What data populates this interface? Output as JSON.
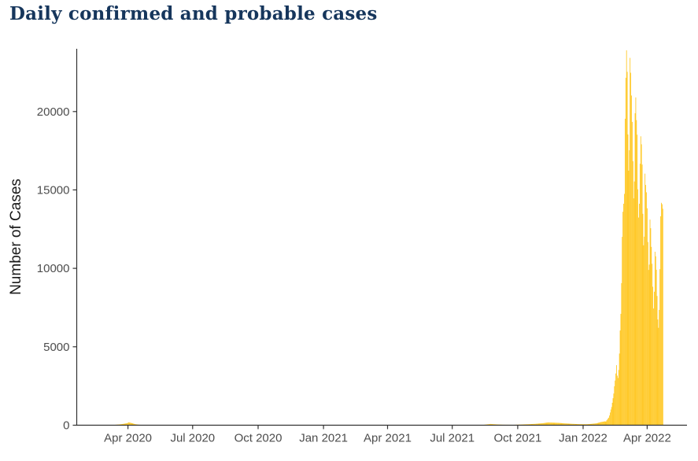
{
  "page": {
    "title": "Daily confirmed and probable cases",
    "title_color": "#16365c",
    "background_color": "#ffffff"
  },
  "chart_data": {
    "type": "bar",
    "title": "Daily confirmed and probable cases",
    "xlabel": "",
    "ylabel": "Number of Cases",
    "legend": "none",
    "grid": "off",
    "panel_background": "#ffffff",
    "bar_color": "#FFC20E",
    "axis_line_color": "#333333",
    "tick_label_color": "#4d4d4d",
    "axis_title_color": "#1a1a1a",
    "xlim": [
      "2020-01-20",
      "2022-05-27"
    ],
    "ylim": [
      0,
      24000
    ],
    "x_ticks": [
      {
        "date": "2020-04-01",
        "label": "Apr 2020"
      },
      {
        "date": "2020-07-01",
        "label": "Jul 2020"
      },
      {
        "date": "2020-10-01",
        "label": "Oct 2020"
      },
      {
        "date": "2021-01-01",
        "label": "Jan 2021"
      },
      {
        "date": "2021-04-01",
        "label": "Apr 2021"
      },
      {
        "date": "2021-07-01",
        "label": "Jul 2021"
      },
      {
        "date": "2021-10-01",
        "label": "Oct 2021"
      },
      {
        "date": "2022-01-01",
        "label": "Jan 2022"
      },
      {
        "date": "2022-04-01",
        "label": "Apr 2022"
      }
    ],
    "y_ticks": [
      {
        "value": 0,
        "label": "0"
      },
      {
        "value": 5000,
        "label": "5000"
      },
      {
        "value": 10000,
        "label": "10000"
      },
      {
        "value": 15000,
        "label": "15000"
      },
      {
        "value": 20000,
        "label": "20000"
      }
    ],
    "series_name": "Daily confirmed and probable cases",
    "keyframes": [
      [
        "2020-02-26",
        0
      ],
      [
        "2020-02-28",
        5
      ],
      [
        "2020-03-05",
        12
      ],
      [
        "2020-03-10",
        18
      ],
      [
        "2020-03-15",
        30
      ],
      [
        "2020-03-20",
        50
      ],
      [
        "2020-03-24",
        75
      ],
      [
        "2020-03-27",
        95
      ],
      [
        "2020-03-31",
        130
      ],
      [
        "2020-04-02",
        180
      ],
      [
        "2020-04-05",
        150
      ],
      [
        "2020-04-08",
        110
      ],
      [
        "2020-04-11",
        70
      ],
      [
        "2020-04-15",
        40
      ],
      [
        "2020-04-20",
        20
      ],
      [
        "2020-04-26",
        10
      ],
      [
        "2020-05-05",
        5
      ],
      [
        "2020-06-01",
        2
      ],
      [
        "2020-08-01",
        3
      ],
      [
        "2020-08-12",
        15
      ],
      [
        "2020-08-20",
        10
      ],
      [
        "2020-09-01",
        8
      ],
      [
        "2020-10-01",
        5
      ],
      [
        "2020-11-15",
        5
      ],
      [
        "2021-01-01",
        8
      ],
      [
        "2021-02-15",
        10
      ],
      [
        "2021-04-01",
        6
      ],
      [
        "2021-06-01",
        5
      ],
      [
        "2021-08-10",
        5
      ],
      [
        "2021-08-18",
        45
      ],
      [
        "2021-08-24",
        80
      ],
      [
        "2021-08-29",
        60
      ],
      [
        "2021-09-10",
        32
      ],
      [
        "2021-09-25",
        25
      ],
      [
        "2021-10-05",
        42
      ],
      [
        "2021-10-15",
        62
      ],
      [
        "2021-10-25",
        85
      ],
      [
        "2021-11-05",
        125
      ],
      [
        "2021-11-13",
        175
      ],
      [
        "2021-11-20",
        160
      ],
      [
        "2021-11-27",
        150
      ],
      [
        "2021-12-05",
        120
      ],
      [
        "2021-12-15",
        92
      ],
      [
        "2021-12-25",
        70
      ],
      [
        "2022-01-05",
        62
      ],
      [
        "2022-01-12",
        82
      ],
      [
        "2022-01-20",
        122
      ],
      [
        "2022-01-26",
        200
      ],
      [
        "2022-02-01",
        250
      ],
      [
        "2022-02-02",
        222
      ],
      [
        "2022-02-03",
        306
      ],
      [
        "2022-02-04",
        352
      ],
      [
        "2022-02-05",
        420
      ],
      [
        "2022-02-06",
        480
      ],
      [
        "2022-02-07",
        620
      ],
      [
        "2022-02-08",
        810
      ],
      [
        "2022-02-09",
        1000
      ],
      [
        "2022-02-10",
        1160
      ],
      [
        "2022-02-11",
        1430
      ],
      [
        "2022-02-12",
        1720
      ],
      [
        "2022-02-13",
        2020
      ],
      [
        "2022-02-14",
        2480
      ],
      [
        "2022-02-15",
        2850
      ],
      [
        "2022-02-16",
        3300
      ],
      [
        "2022-02-17",
        3830
      ],
      [
        "2022-02-18",
        3160
      ],
      [
        "2022-02-19",
        3010
      ],
      [
        "2022-02-20",
        3520
      ],
      [
        "2022-02-21",
        4570
      ],
      [
        "2022-02-22",
        6040
      ],
      [
        "2022-02-23",
        7100
      ],
      [
        "2022-02-24",
        9060
      ],
      [
        "2022-02-25",
        12010
      ],
      [
        "2022-02-26",
        13610
      ],
      [
        "2022-02-27",
        14120
      ],
      [
        "2022-02-28",
        14750
      ],
      [
        "2022-03-01",
        19540
      ],
      [
        "2022-03-02",
        22150
      ],
      [
        "2022-03-03",
        23900
      ],
      [
        "2022-03-04",
        22530
      ],
      [
        "2022-03-05",
        18540
      ],
      [
        "2022-03-06",
        16230
      ],
      [
        "2022-03-07",
        17530
      ],
      [
        "2022-03-08",
        23420
      ],
      [
        "2022-03-09",
        22470
      ],
      [
        "2022-03-10",
        21020
      ],
      [
        "2022-03-11",
        19340
      ],
      [
        "2022-03-12",
        16830
      ],
      [
        "2022-03-13",
        14460
      ],
      [
        "2022-03-14",
        15540
      ],
      [
        "2022-03-15",
        19890
      ],
      [
        "2022-03-16",
        20900
      ],
      [
        "2022-03-17",
        19450
      ],
      [
        "2022-03-18",
        18520
      ],
      [
        "2022-03-19",
        15040
      ],
      [
        "2022-03-20",
        13240
      ],
      [
        "2022-03-21",
        14120
      ],
      [
        "2022-03-22",
        16670
      ],
      [
        "2022-03-23",
        18420
      ],
      [
        "2022-03-24",
        17910
      ],
      [
        "2022-03-25",
        16620
      ],
      [
        "2022-03-26",
        13480
      ],
      [
        "2022-03-27",
        11470
      ],
      [
        "2022-03-28",
        12020
      ],
      [
        "2022-03-29",
        16040
      ],
      [
        "2022-03-30",
        15320
      ],
      [
        "2022-03-31",
        14850
      ],
      [
        "2022-04-01",
        13830
      ],
      [
        "2022-04-02",
        11680
      ],
      [
        "2022-04-03",
        9900
      ],
      [
        "2022-04-04",
        10240
      ],
      [
        "2022-04-05",
        13110
      ],
      [
        "2022-04-06",
        12560
      ],
      [
        "2022-04-07",
        11370
      ],
      [
        "2022-04-08",
        10290
      ],
      [
        "2022-04-09",
        8830
      ],
      [
        "2022-04-10",
        7440
      ],
      [
        "2022-04-11",
        8510
      ],
      [
        "2022-04-12",
        11060
      ],
      [
        "2022-04-13",
        10770
      ],
      [
        "2022-04-14",
        9910
      ],
      [
        "2022-04-15",
        8240
      ],
      [
        "2022-04-16",
        6740
      ],
      [
        "2022-04-17",
        6210
      ],
      [
        "2022-04-18",
        7350
      ],
      [
        "2022-04-19",
        9950
      ],
      [
        "2022-04-20",
        13320
      ],
      [
        "2022-04-21",
        14180
      ],
      [
        "2022-04-22",
        14090
      ],
      [
        "2022-04-23",
        13800
      ]
    ]
  }
}
